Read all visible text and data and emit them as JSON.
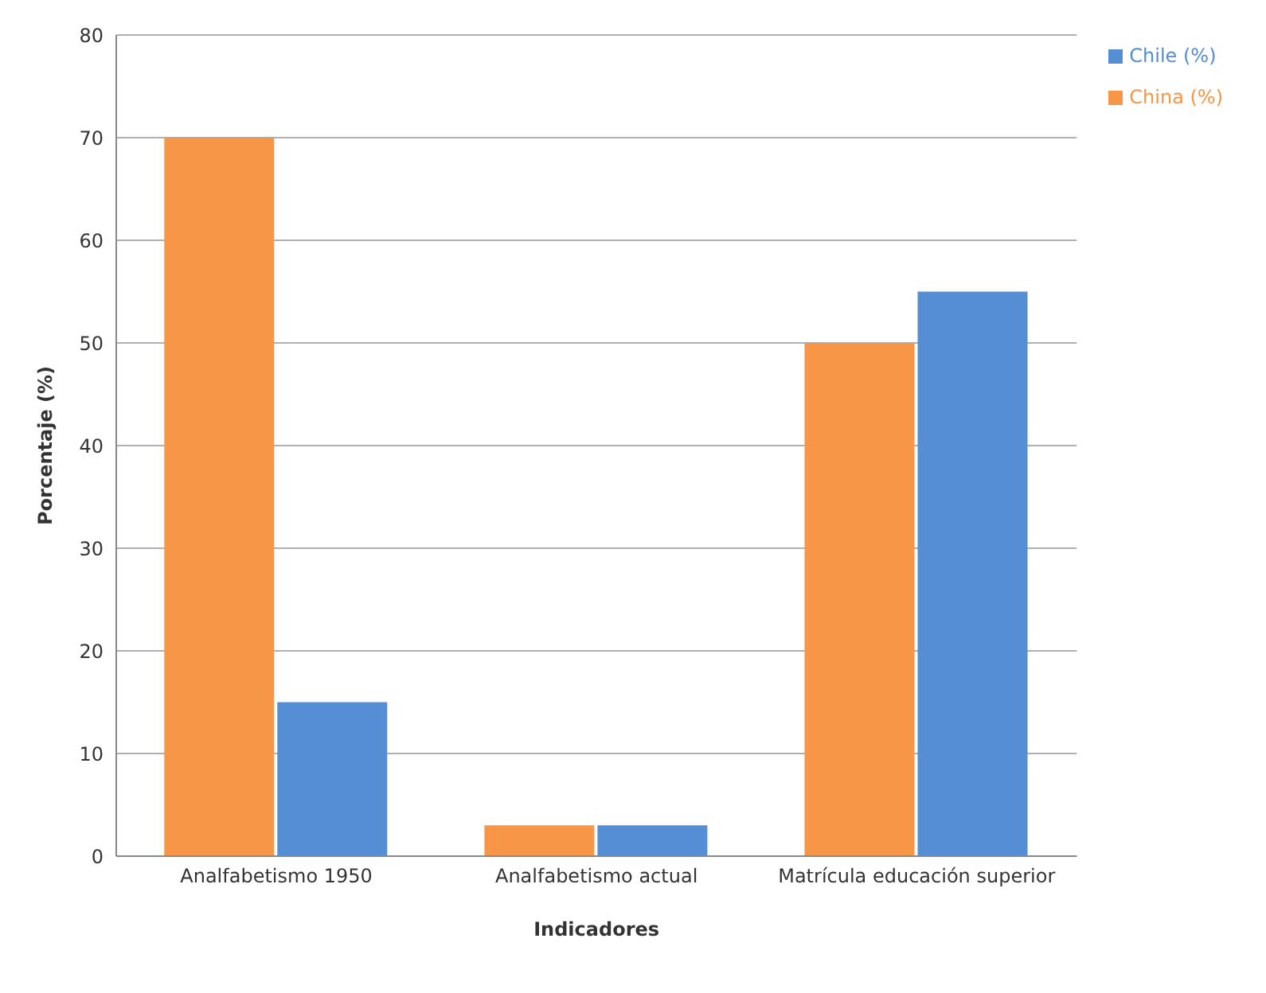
{
  "chart_data": {
    "type": "bar",
    "xlabel": "Indicadores",
    "ylabel": "Porcentaje (%)",
    "categories": [
      "Analfabetismo 1950",
      "Analfabetismo actual",
      "Matrícula educación superior"
    ],
    "series": [
      {
        "name": "China (%)",
        "color": "#f79646",
        "values": [
          70,
          3,
          50
        ]
      },
      {
        "name": "Chile (%)",
        "color": "#558ed5",
        "values": [
          15,
          3,
          55
        ]
      }
    ],
    "ylim": [
      0,
      80
    ],
    "yticks": [
      0,
      10,
      20,
      30,
      40,
      50,
      60,
      70,
      80
    ],
    "grid": "y",
    "legend": "top right"
  }
}
